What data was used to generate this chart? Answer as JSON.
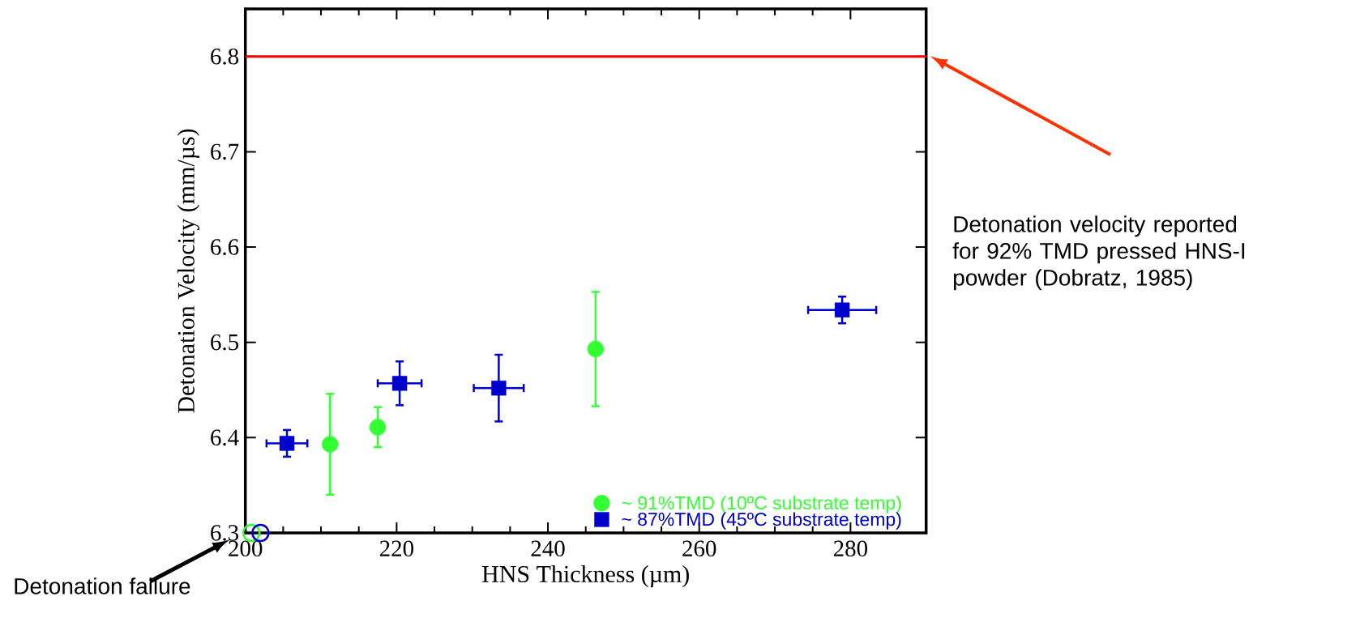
{
  "chart_data": {
    "type": "scatter",
    "xlabel": "HNS Thickness (µm)",
    "ylabel": "Detonation Velocity (mm/µs)",
    "xlim": [
      200,
      290
    ],
    "ylim": [
      6.3,
      6.85
    ],
    "xticks": [
      200,
      220,
      240,
      260,
      280
    ],
    "yticks": [
      6.3,
      6.4,
      6.5,
      6.6,
      6.7,
      6.8
    ],
    "legend": "bottom right",
    "series": [
      {
        "name": "~ 91%TMD (10ºC substrate temp)",
        "color": "#33ff33",
        "marker": "circle",
        "x": [
          211.2,
          217.5,
          246.3
        ],
        "values": [
          6.393,
          6.411,
          6.493
        ],
        "errors": [
          0.053,
          0.021,
          0.06
        ],
        "xerrors": [
          0.5,
          0.5,
          0.5
        ]
      },
      {
        "name": "~ 87%TMD (45ºC substrate temp)",
        "color": "#0000cc",
        "marker": "square",
        "x": [
          205.5,
          220.4,
          233.5,
          278.9
        ],
        "values": [
          6.394,
          6.457,
          6.452,
          6.534
        ],
        "errors": [
          0.014,
          0.023,
          0.035,
          0.014
        ],
        "xerrors": [
          2.7,
          2.9,
          3.3,
          4.5
        ]
      },
      {
        "color": "#33ff33",
        "marker": "circle",
        "x": [
          200.8
        ],
        "values": [
          6.3
        ]
      },
      {
        "color": "#0000cc",
        "marker": "circle",
        "x": [
          202.0
        ],
        "values": [
          6.3
        ]
      }
    ],
    "ref_lines": [
      {
        "axis": "y",
        "value": 6.8,
        "color": "#ff0000"
      }
    ],
    "annotations": [
      "Detonation velocity reported for 92% TMD pressed HNS-I powder (Dobratz, 1985)",
      "Detonation failure"
    ]
  }
}
